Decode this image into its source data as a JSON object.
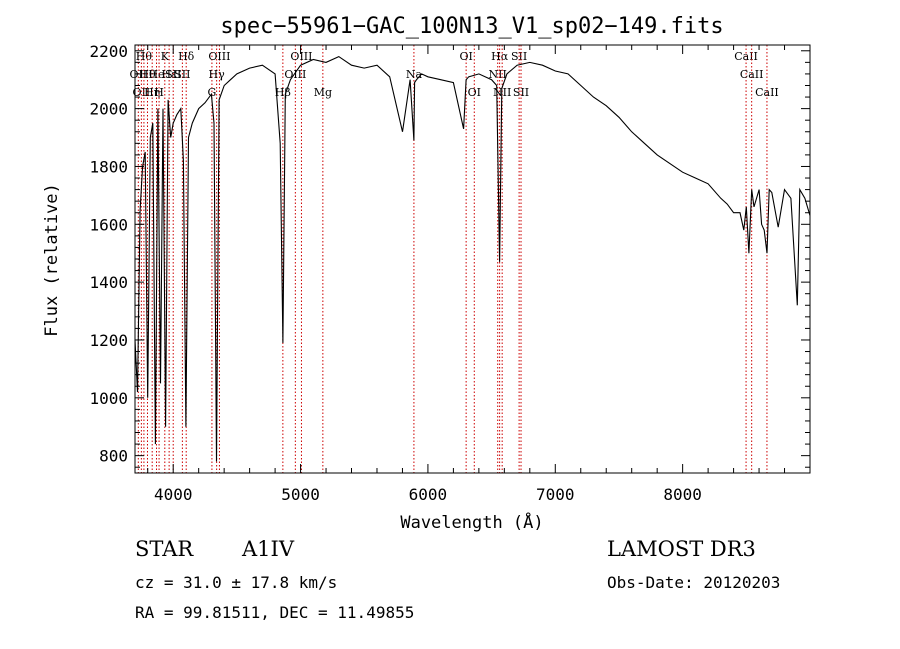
{
  "chart_data": {
    "type": "line",
    "title": "spec−55961−GAC_100N13_V1_sp02−149.fits",
    "xlabel": "Wavelength (Å)",
    "ylabel": "Flux (relative)",
    "xlim": [
      3700,
      9000
    ],
    "ylim": [
      740,
      2220
    ],
    "x_ticks": [
      4000,
      5000,
      6000,
      7000,
      8000
    ],
    "y_ticks": [
      800,
      1000,
      1200,
      1400,
      1600,
      1800,
      2000,
      2200
    ],
    "series": [
      {
        "name": "flux",
        "x": [
          3700,
          3720,
          3740,
          3760,
          3780,
          3800,
          3820,
          3840,
          3860,
          3880,
          3900,
          3920,
          3940,
          3960,
          3980,
          4000,
          4030,
          4060,
          4080,
          4100,
          4120,
          4150,
          4200,
          4250,
          4300,
          4320,
          4340,
          4360,
          4400,
          4450,
          4500,
          4600,
          4700,
          4800,
          4840,
          4861,
          4880,
          4920,
          5000,
          5100,
          5200,
          5300,
          5400,
          5500,
          5600,
          5700,
          5800,
          5860,
          5890,
          5895,
          5910,
          5950,
          6000,
          6100,
          6200,
          6280,
          6300,
          6320,
          6400,
          6500,
          6540,
          6563,
          6580,
          6620,
          6700,
          6800,
          6900,
          7000,
          7100,
          7200,
          7300,
          7400,
          7500,
          7600,
          7700,
          7800,
          7900,
          8000,
          8100,
          8200,
          8300,
          8350,
          8400,
          8450,
          8480,
          8500,
          8520,
          8542,
          8560,
          8600,
          8620,
          8640,
          8662,
          8680,
          8700,
          8750,
          8800,
          8850,
          8900,
          8920,
          8960,
          9000
        ],
        "y": [
          1200,
          1020,
          1650,
          1800,
          1850,
          1000,
          1900,
          1950,
          840,
          2000,
          1050,
          2000,
          900,
          2030,
          1900,
          1950,
          1980,
          2000,
          1820,
          900,
          1900,
          1950,
          2000,
          2020,
          2050,
          1950,
          780,
          2030,
          2080,
          2100,
          2120,
          2140,
          2150,
          2120,
          1880,
          1190,
          2050,
          2100,
          2150,
          2170,
          2160,
          2180,
          2150,
          2140,
          2150,
          2110,
          1920,
          2100,
          1890,
          2090,
          2100,
          2120,
          2110,
          2100,
          2090,
          1930,
          2100,
          2110,
          2120,
          2100,
          2080,
          1470,
          2070,
          2120,
          2150,
          2160,
          2150,
          2130,
          2120,
          2080,
          2040,
          2010,
          1970,
          1920,
          1880,
          1840,
          1810,
          1780,
          1760,
          1740,
          1690,
          1670,
          1640,
          1640,
          1580,
          1660,
          1500,
          1720,
          1660,
          1720,
          1600,
          1580,
          1500,
          1720,
          1710,
          1590,
          1720,
          1690,
          1320,
          1720,
          1690,
          1630
        ]
      }
    ],
    "line_markers": [
      {
        "x": 3726,
        "row": 1,
        "label": "OII"
      },
      {
        "x": 3750,
        "row": 2,
        "label": "OII"
      },
      {
        "x": 3770,
        "row": 0,
        "label": "Hθ"
      },
      {
        "x": 3798,
        "row": 1,
        "label": "Hθ"
      },
      {
        "x": 3835,
        "row": 2,
        "label": "Hη"
      },
      {
        "x": 3869,
        "row": 1,
        "label": "He"
      },
      {
        "x": 3889,
        "row": 2,
        "label": "H"
      },
      {
        "x": 3934,
        "row": 0,
        "label": "K"
      },
      {
        "x": 3968,
        "row": 1,
        "label": "Hε"
      },
      {
        "x": 4000,
        "row": 1,
        "label": "SII"
      },
      {
        "x": 4102,
        "row": 0,
        "label": "Hδ"
      },
      {
        "x": 4072,
        "row": 1,
        "label": "SII"
      },
      {
        "x": 4304,
        "row": 2,
        "label": "G"
      },
      {
        "x": 4341,
        "row": 1,
        "label": "Hγ"
      },
      {
        "x": 4363,
        "row": 0,
        "label": "OIII"
      },
      {
        "x": 4861,
        "row": 2,
        "label": "Hβ"
      },
      {
        "x": 4959,
        "row": 1,
        "label": "OIII"
      },
      {
        "x": 5007,
        "row": 0,
        "label": "OIII"
      },
      {
        "x": 5175,
        "row": 2,
        "label": "Mg"
      },
      {
        "x": 5890,
        "row": 1,
        "label": "Na"
      },
      {
        "x": 6300,
        "row": 0,
        "label": "OI"
      },
      {
        "x": 6364,
        "row": 2,
        "label": "OI"
      },
      {
        "x": 6548,
        "row": 1,
        "label": "NII"
      },
      {
        "x": 6563,
        "row": 0,
        "label": "Hα"
      },
      {
        "x": 6583,
        "row": 2,
        "label": "NII"
      },
      {
        "x": 6716,
        "row": 0,
        "label": "SII"
      },
      {
        "x": 6731,
        "row": 2,
        "label": "SII"
      },
      {
        "x": 8498,
        "row": 0,
        "label": "CaII"
      },
      {
        "x": 8542,
        "row": 1,
        "label": "CaII"
      },
      {
        "x": 8662,
        "row": 2,
        "label": "CaII"
      }
    ]
  },
  "info": {
    "object_class": "STAR",
    "subclass": "A1IV",
    "survey": "LAMOST DR3",
    "cz": "cz = 31.0 ± 17.8 km/s",
    "obs_date": "Obs-Date: 20120203",
    "coords": "RA =  99.81511, DEC =  11.49855"
  },
  "colors": {
    "line": "#000000",
    "marker": "#cc0000"
  }
}
